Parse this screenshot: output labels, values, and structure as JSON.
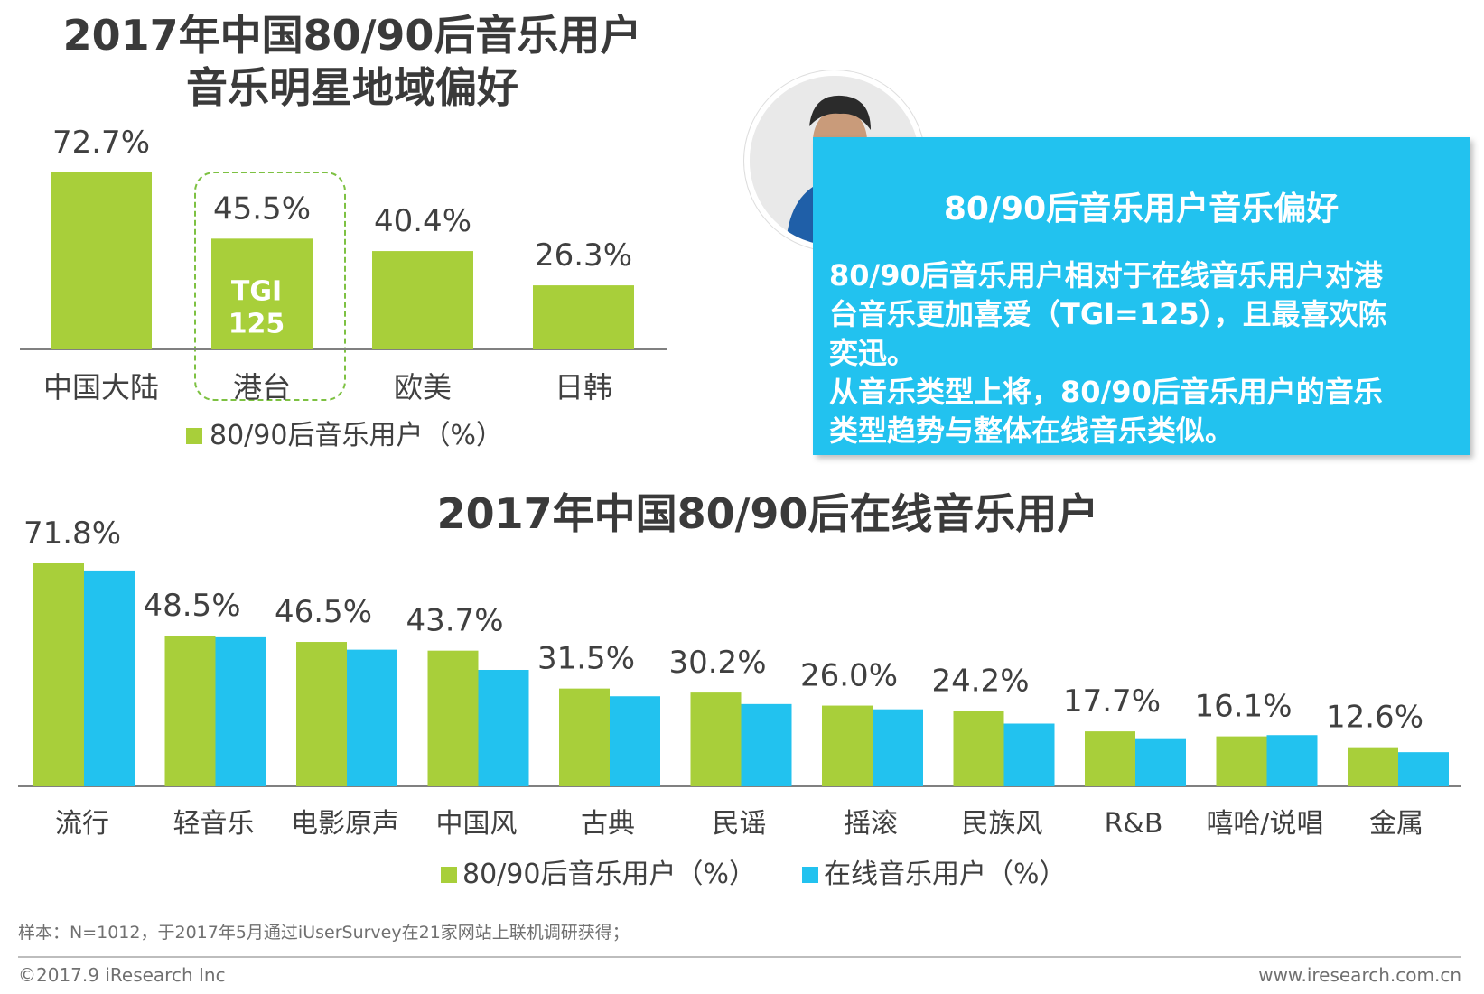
{
  "top_title_line1": "2017年中国80/90后音乐用户",
  "top_title_line2": "音乐明星地域偏好",
  "mid_title": "2017年中国80/90后在线音乐用户",
  "colors": {
    "green": "#a8cf3a",
    "blue": "#22c2ef",
    "axis": "#808080"
  },
  "chart_data": [
    {
      "type": "bar",
      "title": "2017年中国80/90后音乐用户音乐明星地域偏好",
      "categories": [
        "中国大陆",
        "港台",
        "欧美",
        "日韩"
      ],
      "series": [
        {
          "name": "80/90后音乐用户（%）",
          "values": [
            72.7,
            45.5,
            40.4,
            26.3
          ],
          "labels": [
            "72.7%",
            "45.5%",
            "40.4%",
            "26.3%"
          ]
        }
      ],
      "annotation": {
        "category": "港台",
        "line1": "TGI",
        "line2": "125"
      },
      "legend": [
        "80/90后音乐用户（%）"
      ],
      "ylim": [
        0,
        80
      ]
    },
    {
      "type": "bar",
      "title": "2017年中国80/90后在线音乐用户",
      "categories": [
        "流行",
        "轻音乐",
        "电影原声",
        "中国风",
        "古典",
        "民谣",
        "摇滚",
        "民族风",
        "R&B",
        "嘻哈/说唱",
        "金属"
      ],
      "series": [
        {
          "name": "80/90后音乐用户（%）",
          "values": [
            71.8,
            48.5,
            46.5,
            43.7,
            31.5,
            30.2,
            26.0,
            24.2,
            17.7,
            16.1,
            12.6
          ],
          "labels": [
            "71.8%",
            "48.5%",
            "46.5%",
            "43.7%",
            "31.5%",
            "30.2%",
            "26.0%",
            "24.2%",
            "17.7%",
            "16.1%",
            "12.6%"
          ]
        },
        {
          "name": "在线音乐用户（%）",
          "values": [
            69.5,
            48.0,
            44.0,
            37.5,
            29.0,
            26.5,
            24.8,
            20.2,
            15.5,
            16.5,
            11.0
          ]
        }
      ],
      "legend": [
        "80/90后音乐用户（%）",
        "在线音乐用户（%）"
      ],
      "ylim": [
        0,
        80
      ]
    }
  ],
  "info": {
    "title": "80/90后音乐用户音乐偏好",
    "line1": "80/90后音乐用户相对于在线音乐用户对港",
    "line2": "台音乐更加喜爱（TGI=125），且最喜欢陈",
    "line3": "奕迅。",
    "line4": "从音乐类型上将，80/90后音乐用户的音乐",
    "line5": "类型趋势与整体在线音乐类似。"
  },
  "footer": {
    "note": "样本：N=1012，于2017年5月通过iUserSurvey在21家网站上联机调研获得；",
    "copyright": "©2017.9 iResearch Inc",
    "website": "www.iresearch.com.cn"
  }
}
